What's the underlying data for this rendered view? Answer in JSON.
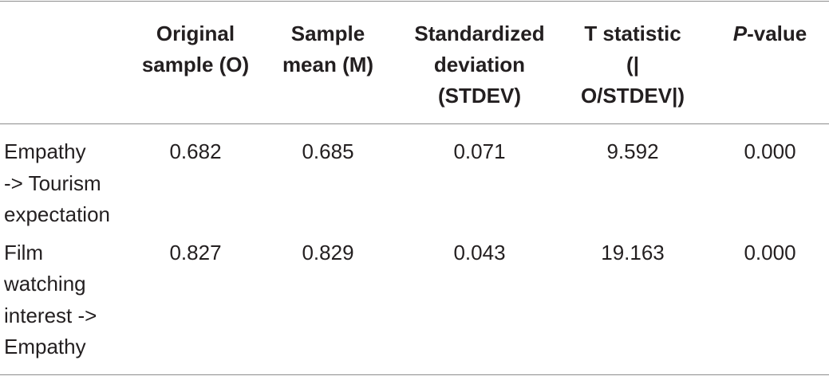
{
  "table": {
    "columns": [
      {
        "lines": [
          "Original",
          "sample (O)"
        ]
      },
      {
        "lines": [
          "Sample",
          "mean (M)"
        ]
      },
      {
        "lines": [
          "Standardized",
          "deviation",
          "(STDEV)"
        ]
      },
      {
        "lines": [
          "T statistic",
          "(|",
          "O/STDEV|)"
        ]
      },
      {
        "italic": "P",
        "text": "-value"
      }
    ],
    "rows": [
      {
        "label": [
          "Empathy",
          "-> Tourism",
          "expectation"
        ],
        "cells": [
          "0.682",
          "0.685",
          "0.071",
          "9.592",
          "0.000"
        ]
      },
      {
        "label": [
          "Film",
          "watching",
          "interest ->",
          "Empathy"
        ],
        "cells": [
          "0.827",
          "0.829",
          "0.043",
          "19.163",
          "0.000"
        ]
      }
    ]
  }
}
